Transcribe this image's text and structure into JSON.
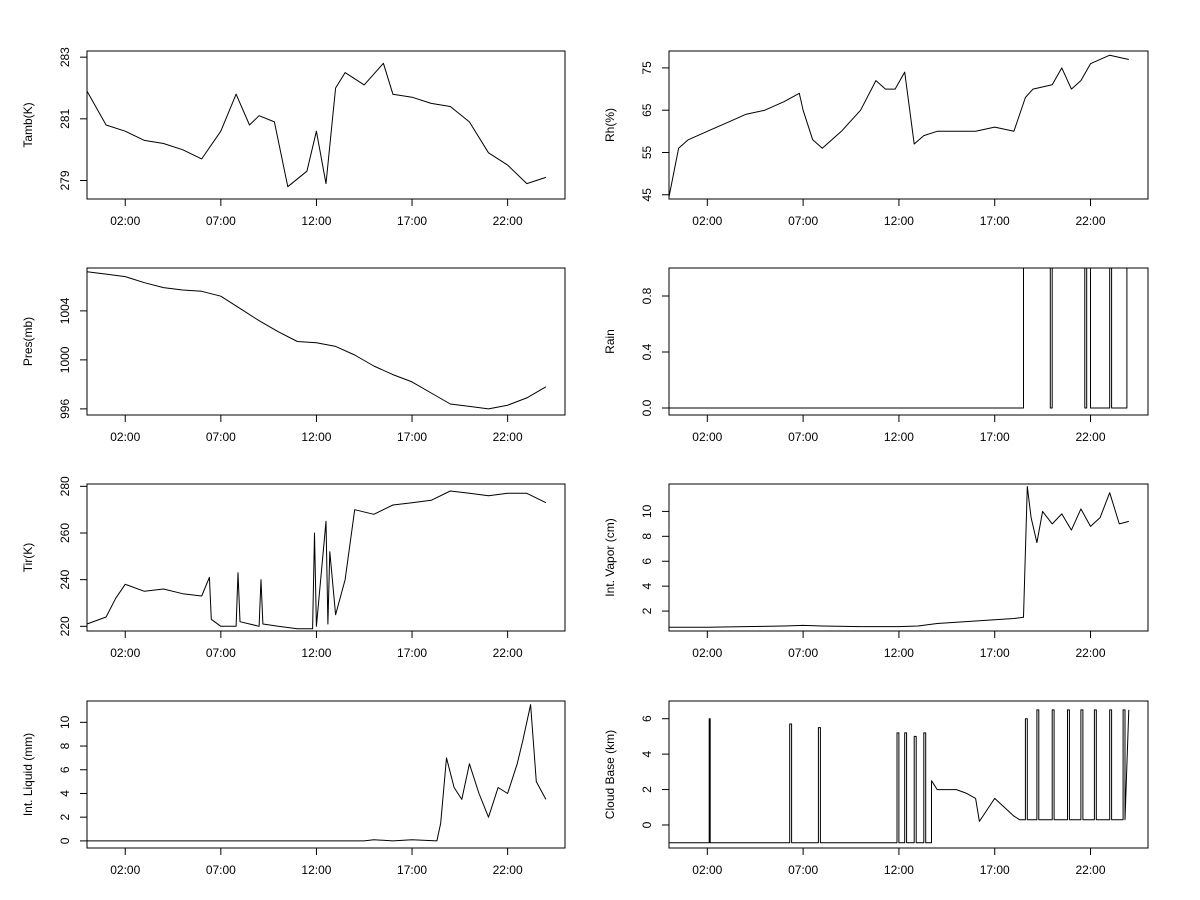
{
  "chart_data": [
    {
      "type": "line",
      "ylabel": "Tamb(K)",
      "xlim": [
        0,
        25
      ],
      "ylim": [
        278.4,
        283.2
      ],
      "x_ticks": [
        2,
        7,
        12,
        17,
        22
      ],
      "x_tick_labels": [
        "02:00",
        "07:00",
        "12:00",
        "17:00",
        "22:00"
      ],
      "y_ticks": [
        279,
        281,
        283
      ],
      "y_tick_labels": [
        "279",
        "281",
        "283"
      ],
      "series": [
        {
          "x": [
            0,
            1,
            2,
            3,
            4,
            5,
            6,
            7,
            7.8,
            8.5,
            9,
            9.8,
            10.5,
            11.5,
            12,
            12.5,
            13,
            13.5,
            14.5,
            15.5,
            16,
            17,
            18,
            19,
            20,
            21,
            22,
            23,
            24
          ],
          "y": [
            281.9,
            280.8,
            280.6,
            280.3,
            280.2,
            280.0,
            279.7,
            280.6,
            281.8,
            280.8,
            281.1,
            280.9,
            278.8,
            279.3,
            280.6,
            278.9,
            282.0,
            282.5,
            282.1,
            282.8,
            281.8,
            281.7,
            281.5,
            281.4,
            280.9,
            279.9,
            279.5,
            278.9,
            279.1
          ]
        }
      ]
    },
    {
      "type": "line",
      "ylabel": "Rh(%)",
      "xlim": [
        0,
        25
      ],
      "ylim": [
        44,
        79
      ],
      "x_ticks": [
        2,
        7,
        12,
        17,
        22
      ],
      "x_tick_labels": [
        "02:00",
        "07:00",
        "12:00",
        "17:00",
        "22:00"
      ],
      "y_ticks": [
        45,
        55,
        65,
        75
      ],
      "y_tick_labels": [
        "45",
        "55",
        "65",
        "75"
      ],
      "series": [
        {
          "x": [
            0,
            0.5,
            1,
            2,
            3,
            4,
            5,
            6,
            6.8,
            7,
            7.5,
            8,
            9,
            10,
            10.8,
            11.3,
            11.8,
            12.3,
            12.8,
            13.3,
            14,
            15,
            16,
            17,
            18,
            18.6,
            19,
            20,
            20.5,
            21,
            21.5,
            22,
            23,
            24
          ],
          "y": [
            44.5,
            56,
            58,
            60,
            62,
            64,
            65,
            67,
            69,
            65,
            58,
            56,
            60,
            65,
            72,
            70,
            70,
            74,
            57,
            59,
            60,
            60,
            60,
            61,
            60,
            68,
            70,
            71,
            75,
            70,
            72,
            76,
            78,
            77
          ]
        }
      ]
    },
    {
      "type": "line",
      "ylabel": "Pres(mb)",
      "xlim": [
        0,
        25
      ],
      "ylim": [
        995.5,
        1007.5
      ],
      "x_ticks": [
        2,
        7,
        12,
        17,
        22
      ],
      "x_tick_labels": [
        "02:00",
        "07:00",
        "12:00",
        "17:00",
        "22:00"
      ],
      "y_ticks": [
        996,
        1000,
        1004
      ],
      "y_tick_labels": [
        "996",
        "1000",
        "1004"
      ],
      "series": [
        {
          "x": [
            0,
            1,
            2,
            3,
            4,
            5,
            6,
            7,
            8,
            9,
            10,
            11,
            12,
            13,
            14,
            15,
            16,
            17,
            18,
            19,
            20,
            21,
            22,
            23,
            24
          ],
          "y": [
            1007.2,
            1007.0,
            1006.8,
            1006.3,
            1005.9,
            1005.7,
            1005.6,
            1005.2,
            1004.2,
            1003.2,
            1002.3,
            1001.5,
            1001.4,
            1001.1,
            1000.4,
            999.5,
            998.8,
            998.2,
            997.3,
            996.4,
            996.2,
            996.0,
            996.3,
            996.9,
            997.8
          ]
        }
      ]
    },
    {
      "type": "line",
      "ylabel": "Rain",
      "xlim": [
        0,
        25
      ],
      "ylim": [
        -0.05,
        1.0
      ],
      "x_ticks": [
        2,
        7,
        12,
        17,
        22
      ],
      "x_tick_labels": [
        "02:00",
        "07:00",
        "12:00",
        "17:00",
        "22:00"
      ],
      "y_ticks": [
        0.0,
        0.4,
        0.8
      ],
      "y_tick_labels": [
        "0.0",
        "0.4",
        "0.8"
      ],
      "series": [
        {
          "x": [
            0,
            18.5,
            18.5,
            19.9,
            19.9,
            20.0,
            20.0,
            21.7,
            21.7,
            21.8,
            21.8,
            22.0,
            22.0,
            23.0,
            23.0,
            23.1,
            23.1,
            23.9,
            23.9,
            24
          ],
          "y": [
            0,
            0,
            1,
            1,
            0,
            0,
            1,
            1,
            0,
            0,
            1,
            1,
            0,
            0,
            1,
            1,
            0,
            0,
            1,
            1
          ]
        }
      ]
    },
    {
      "type": "line",
      "ylabel": "Tir(K)",
      "xlim": [
        0,
        25
      ],
      "ylim": [
        218,
        281
      ],
      "x_ticks": [
        2,
        7,
        12,
        17,
        22
      ],
      "x_tick_labels": [
        "02:00",
        "07:00",
        "12:00",
        "17:00",
        "22:00"
      ],
      "y_ticks": [
        220,
        240,
        260,
        280
      ],
      "y_tick_labels": [
        "220",
        "240",
        "260",
        "280"
      ],
      "series": [
        {
          "x": [
            0,
            1,
            1.5,
            2,
            3,
            4,
            5,
            6,
            6.4,
            6.5,
            7,
            7.8,
            7.9,
            8,
            9,
            9.1,
            9.2,
            10,
            11,
            11.8,
            11.9,
            12,
            12.5,
            12.6,
            12.7,
            13,
            13.5,
            14,
            15,
            16,
            17,
            18,
            19,
            20,
            21,
            22,
            23,
            24
          ],
          "y": [
            221,
            224,
            232,
            238,
            235,
            236,
            234,
            233,
            241,
            223,
            220,
            220,
            243,
            222,
            220,
            240,
            221,
            220,
            219,
            219,
            260,
            220,
            265,
            221,
            252,
            225,
            240,
            270,
            268,
            272,
            273,
            274,
            278,
            277,
            276,
            277,
            277,
            273
          ]
        }
      ]
    },
    {
      "type": "line",
      "ylabel": "Int. Vapor (cm)",
      "xlim": [
        0,
        25
      ],
      "ylim": [
        0.4,
        12.2
      ],
      "x_ticks": [
        2,
        7,
        12,
        17,
        22
      ],
      "x_tick_labels": [
        "02:00",
        "07:00",
        "12:00",
        "17:00",
        "22:00"
      ],
      "y_ticks": [
        2,
        4,
        6,
        8,
        10
      ],
      "y_tick_labels": [
        "2",
        "4",
        "6",
        "8",
        "10"
      ],
      "series": [
        {
          "x": [
            0,
            2,
            4,
            6,
            7,
            8,
            10,
            12,
            13,
            14,
            15,
            16,
            17,
            18,
            18.5,
            18.7,
            18.9,
            19.2,
            19.5,
            20,
            20.5,
            21,
            21.5,
            22,
            22.5,
            23,
            23.5,
            24
          ],
          "y": [
            0.7,
            0.7,
            0.75,
            0.8,
            0.85,
            0.8,
            0.75,
            0.75,
            0.8,
            1.0,
            1.1,
            1.2,
            1.3,
            1.4,
            1.5,
            12.0,
            9.5,
            7.5,
            10.0,
            9.0,
            9.8,
            8.5,
            10.2,
            8.8,
            9.5,
            11.5,
            9.0,
            9.2
          ]
        }
      ]
    },
    {
      "type": "line",
      "ylabel": "Int. Liquid (mm)",
      "xlim": [
        0,
        25
      ],
      "ylim": [
        -0.6,
        11.8
      ],
      "x_ticks": [
        2,
        7,
        12,
        17,
        22
      ],
      "x_tick_labels": [
        "02:00",
        "07:00",
        "12:00",
        "17:00",
        "22:00"
      ],
      "y_ticks": [
        0,
        2,
        4,
        6,
        8,
        10
      ],
      "y_tick_labels": [
        "0",
        "2",
        "4",
        "6",
        "8",
        "10"
      ],
      "series": [
        {
          "x": [
            0,
            14,
            14.5,
            15,
            16,
            17,
            18.3,
            18.5,
            18.8,
            19.2,
            19.6,
            20,
            20.5,
            21,
            21.5,
            22,
            22.5,
            22.8,
            23.2,
            23.5,
            24
          ],
          "y": [
            0,
            0,
            0,
            0.1,
            0,
            0.1,
            0,
            1.5,
            7.0,
            4.5,
            3.5,
            6.5,
            4.0,
            2.0,
            4.5,
            4.0,
            6.5,
            8.5,
            11.5,
            5.0,
            3.5
          ]
        }
      ]
    },
    {
      "type": "line",
      "ylabel": "Cloud Base (km)",
      "xlim": [
        0,
        25
      ],
      "ylim": [
        -1.3,
        7.0
      ],
      "x_ticks": [
        2,
        7,
        12,
        17,
        22
      ],
      "x_tick_labels": [
        "02:00",
        "07:00",
        "12:00",
        "17:00",
        "22:00"
      ],
      "y_ticks": [
        0,
        2,
        4,
        6
      ],
      "y_tick_labels": [
        "0",
        "2",
        "4",
        "6"
      ],
      "series": [
        {
          "x": [
            0,
            2.1,
            2.1,
            2.15,
            2.15,
            6.3,
            6.3,
            6.4,
            6.4,
            7.8,
            7.8,
            7.9,
            7.9,
            11.9,
            11.9,
            12.0,
            12.0,
            12.3,
            12.3,
            12.4,
            12.4,
            12.8,
            12.8,
            12.9,
            12.9,
            13.3,
            13.3,
            13.4,
            13.4,
            13.7,
            13.7,
            14.0,
            14.5,
            15.0,
            15.5,
            16.0,
            16.2,
            16.2,
            17.0,
            17.5,
            18.0,
            18.3,
            18.6,
            18.6,
            18.7,
            18.7,
            19.2,
            19.2,
            19.3,
            19.3,
            20.0,
            20.0,
            20.1,
            20.1,
            20.8,
            20.8,
            20.9,
            20.9,
            21.5,
            21.5,
            21.6,
            21.6,
            22.2,
            22.2,
            22.3,
            22.3,
            23.0,
            23.0,
            23.1,
            23.1,
            23.7,
            23.7,
            23.8,
            23.8,
            24
          ],
          "y": [
            -1,
            -1,
            6,
            6,
            -1,
            -1,
            5.7,
            5.7,
            -1,
            -1,
            5.5,
            5.5,
            -1,
            -1,
            5.2,
            5.2,
            -1,
            -1,
            5.2,
            5.2,
            -1,
            -1,
            5.0,
            5.0,
            -1,
            -1,
            5.2,
            5.2,
            -1,
            -1,
            2.5,
            2.0,
            2.0,
            2.0,
            1.8,
            1.5,
            0.2,
            0.2,
            1.5,
            1.0,
            0.5,
            0.3,
            0.3,
            6.0,
            6.0,
            0.3,
            0.3,
            6.5,
            6.5,
            0.3,
            0.3,
            6.5,
            6.5,
            0.3,
            0.3,
            6.5,
            6.5,
            0.3,
            0.3,
            6.5,
            6.5,
            0.3,
            0.3,
            6.5,
            6.5,
            0.3,
            0.3,
            6.5,
            6.5,
            0.3,
            0.3,
            6.5,
            6.5,
            0.3,
            6.5
          ]
        }
      ]
    }
  ]
}
